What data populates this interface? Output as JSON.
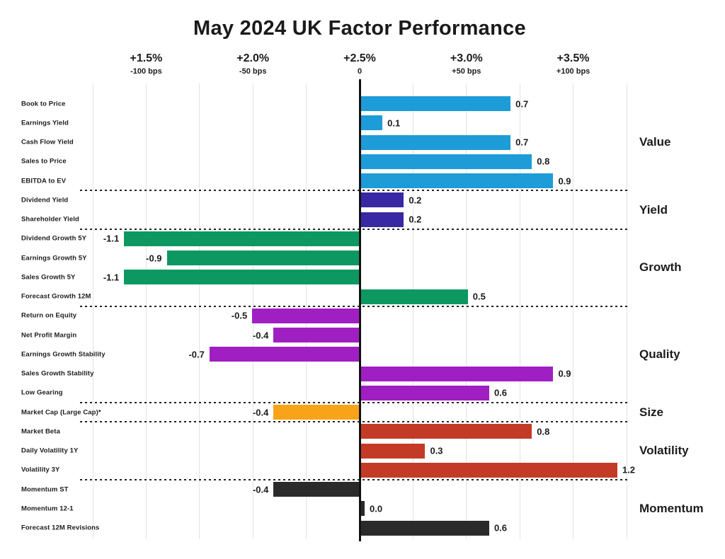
{
  "chart_data": {
    "type": "bar",
    "orientation": "horizontal",
    "title": "May 2024 UK Factor Performance",
    "value_axis": {
      "range": [
        -1.25,
        1.25
      ],
      "gridline_step": 0.25,
      "grid": true,
      "top_ticks": [
        {
          "pct": "+1.5%",
          "bps": "-100 bps",
          "value": -1.0
        },
        {
          "pct": "+2.0%",
          "bps": "-50 bps",
          "value": -0.5
        },
        {
          "pct": "+2.5%",
          "bps": "0",
          "value": 0.0
        },
        {
          "pct": "+3.0%",
          "bps": "+50 bps",
          "value": 0.5
        },
        {
          "pct": "+3.5%",
          "bps": "+100 bps",
          "value": 1.0
        }
      ]
    },
    "legend_position": "right",
    "groups": [
      {
        "name": "Value",
        "color": "#1e9cd7",
        "factors": [
          {
            "label": "Book to Price",
            "value": 0.7
          },
          {
            "label": "Earnings Yield",
            "value": 0.1
          },
          {
            "label": "Cash Flow Yield",
            "value": 0.7
          },
          {
            "label": "Sales to Price",
            "value": 0.8
          },
          {
            "label": "EBITDA to EV",
            "value": 0.9
          }
        ]
      },
      {
        "name": "Yield",
        "color": "#3928a4",
        "factors": [
          {
            "label": "Dividend Yield",
            "value": 0.2
          },
          {
            "label": "Shareholder Yield",
            "value": 0.2
          }
        ]
      },
      {
        "name": "Growth",
        "color": "#0e9861",
        "factors": [
          {
            "label": "Dividend Growth 5Y",
            "value": -1.1
          },
          {
            "label": "Earnings Growth 5Y",
            "value": -0.9
          },
          {
            "label": "Sales Growth 5Y",
            "value": -1.1
          },
          {
            "label": "Forecast Growth 12M",
            "value": 0.5
          }
        ]
      },
      {
        "name": "Quality",
        "color": "#a01fc2",
        "factors": [
          {
            "label": "Return on Equity",
            "value": -0.5
          },
          {
            "label": "Net Profit Margin",
            "value": -0.4
          },
          {
            "label": "Earnings Growth Stability",
            "value": -0.7
          },
          {
            "label": "Sales Growth Stability",
            "value": 0.9
          },
          {
            "label": "Low Gearing",
            "value": 0.6
          }
        ]
      },
      {
        "name": "Size",
        "color": "#f9a319",
        "factors": [
          {
            "label": "Market Cap (Large Cap)*",
            "value": -0.4
          }
        ]
      },
      {
        "name": "Volatility",
        "color": "#c33b27",
        "factors": [
          {
            "label": "Market Beta",
            "value": 0.8
          },
          {
            "label": "Daily Volatility 1Y",
            "value": 0.3
          },
          {
            "label": "Volatility 3Y",
            "value": 1.2
          }
        ]
      },
      {
        "name": "Momentum",
        "color": "#2a2a2a",
        "factors": [
          {
            "label": "Momentum ST",
            "value": -0.4
          },
          {
            "label": "Momentum 12-1",
            "value": 0.0
          },
          {
            "label": "Forecast 12M Revisions",
            "value": 0.6
          }
        ]
      }
    ]
  }
}
